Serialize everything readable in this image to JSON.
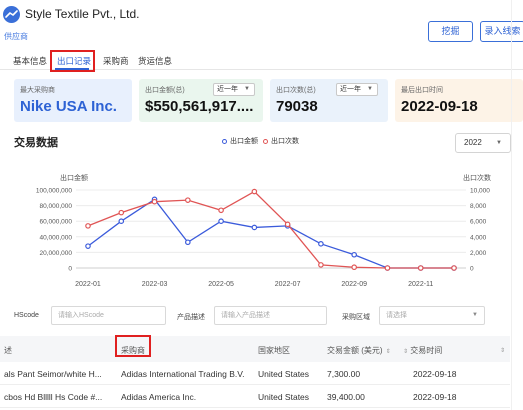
{
  "header": {
    "company_name": "Style Textile Pvt., Ltd.",
    "role_tag": "供应商",
    "claim_button": "挖掘",
    "add_lead_button": "录入线索"
  },
  "tabs": [
    {
      "label": "基本信息",
      "active": false
    },
    {
      "label": "出口记录",
      "active": true
    },
    {
      "label": "采购商",
      "active": false
    },
    {
      "label": "货运信息",
      "active": false
    }
  ],
  "summary_cards": [
    {
      "label": "最大采购商",
      "value": "Nike USA Inc."
    },
    {
      "label": "出口金额(总)",
      "value": "$550,561,917....",
      "period": "近一年"
    },
    {
      "label": "出口次数(总)",
      "value": "79038",
      "period": "近一年"
    },
    {
      "label": "最后出口时间",
      "value": "2022-09-18"
    }
  ],
  "chart_section": {
    "title": "交易数据",
    "year_select": "2022"
  },
  "chart_data": {
    "type": "line",
    "x": [
      "2022-01",
      "2022-02",
      "2022-03",
      "2022-04",
      "2022-05",
      "2022-06",
      "2022-07",
      "2022-08",
      "2022-09",
      "2022-10",
      "2022-11",
      "2022-12"
    ],
    "x_tick_labels": [
      "2022-01",
      "2022-03",
      "2022-05",
      "2022-07",
      "2022-09",
      "2022-11"
    ],
    "y_left_label": "出口金额",
    "y_right_label": "出口次数",
    "y_left_ticks": [
      "0",
      "20,000,000",
      "40,000,000",
      "60,000,000",
      "80,000,000",
      "100,000,000"
    ],
    "y_right_ticks": [
      "0",
      "2,000",
      "4,000",
      "6,000",
      "8,000",
      "10,000"
    ],
    "ylim_left": [
      0,
      100000000
    ],
    "ylim_right": [
      0,
      10000
    ],
    "series": [
      {
        "name": "出口金额",
        "axis": "left",
        "color": "#3b5bdb",
        "values": [
          28000000,
          60000000,
          88000000,
          33000000,
          60000000,
          52000000,
          54000000,
          31000000,
          17000000,
          0,
          0,
          0
        ]
      },
      {
        "name": "出口次数",
        "axis": "right",
        "color": "#e05555",
        "values": [
          5400,
          7100,
          8500,
          8700,
          7400,
          9800,
          5600,
          400,
          100,
          0,
          0,
          0
        ]
      }
    ],
    "grid": true,
    "legend_position": "top-center"
  },
  "filters": {
    "hscode_label": "HScode",
    "hscode_placeholder": "请输入HScode",
    "product_label": "产品描述",
    "product_placeholder": "请输入产品描述",
    "region_label": "采购区域",
    "region_placeholder": "请选择"
  },
  "table": {
    "columns": [
      "述",
      "采购商",
      "国家地区",
      "交易金额 (美元)",
      "交易时间"
    ],
    "rows": [
      {
        "product": "als Pant Seimor/white H...",
        "buyer": "Adidas International Trading B.V.",
        "country": "United States",
        "amount": "7,300.00",
        "date": "2022-09-18"
      },
      {
        "product": "cbos Hd Blllll Hs Code #...",
        "buyer": "Adidas America Inc.",
        "country": "United States",
        "amount": "39,400.00",
        "date": "2022-09-18"
      }
    ]
  },
  "colors": {
    "accent": "#2d62d4",
    "highlight_box": "#e02020",
    "series_amount": "#3b5bdb",
    "series_count": "#e05555"
  }
}
